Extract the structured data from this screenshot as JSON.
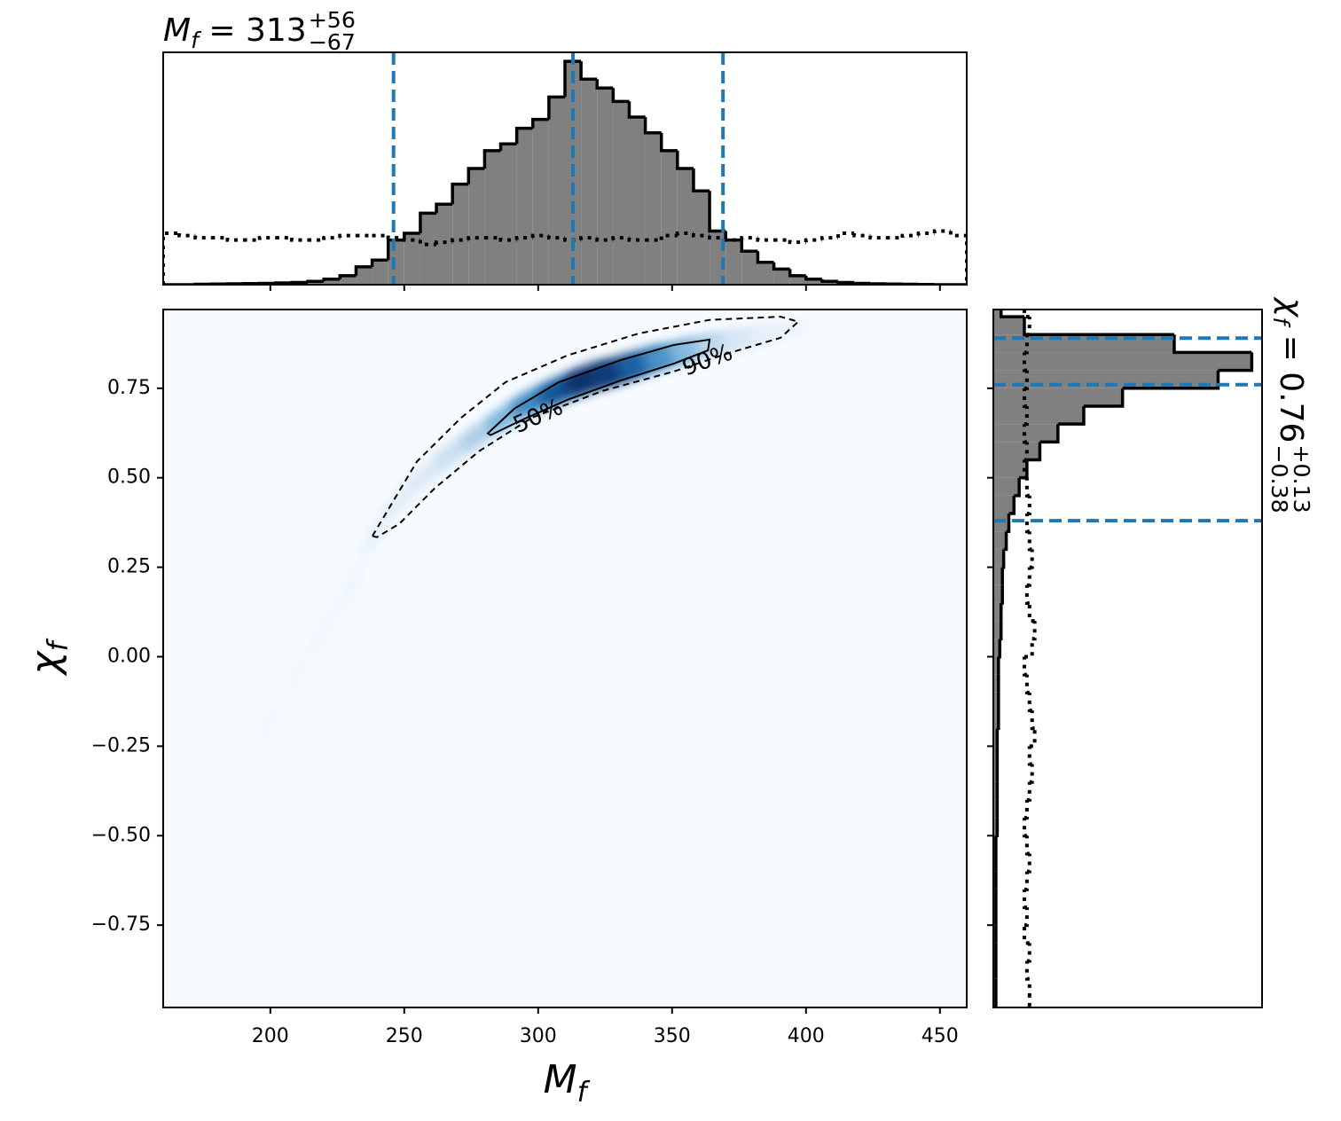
{
  "chart_data": {
    "type": "corner",
    "top_title": {
      "symbol": "M",
      "sub": "f",
      "eq": " = 313",
      "plus": "+56",
      "minus": "−67"
    },
    "right_title": {
      "symbol": "χ",
      "sub": "f",
      "eq": " = 0.76",
      "plus": "+0.13",
      "minus": "−0.38"
    },
    "xlabel": {
      "symbol": "M",
      "sub": "f"
    },
    "ylabel": {
      "symbol": "χ",
      "sub": "f"
    },
    "xlim": [
      160,
      460
    ],
    "ylim": [
      -0.98,
      0.97
    ],
    "xticks": [
      200,
      250,
      300,
      350,
      400,
      450
    ],
    "yticks": [
      {
        "value": -0.75,
        "label": "−0.75"
      },
      {
        "value": -0.5,
        "label": "−0.50"
      },
      {
        "value": -0.25,
        "label": "−0.25"
      },
      {
        "value": 0,
        "label": "0.00"
      },
      0.25,
      {
        "value": 0.5,
        "label": "0.50"
      },
      0.75
    ],
    "colormap": [
      "#f7fbff",
      "#c6dbef",
      "#6baed6",
      "#2171b5",
      "#08306b"
    ],
    "density": {
      "x": [
        200,
        210,
        220,
        230,
        240,
        250,
        260,
        270,
        280,
        290,
        300,
        310,
        320,
        330,
        340,
        350,
        360,
        370,
        380,
        390
      ],
      "y": [
        -0.18,
        -0.05,
        0.08,
        0.2,
        0.35,
        0.45,
        0.52,
        0.58,
        0.63,
        0.68,
        0.72,
        0.75,
        0.78,
        0.8,
        0.825,
        0.845,
        0.865,
        0.88,
        0.895,
        0.91
      ],
      "values": [
        0.02,
        0.025,
        0.03,
        0.04,
        0.07,
        0.1,
        0.15,
        0.22,
        0.32,
        0.45,
        0.65,
        0.85,
        1.0,
        0.95,
        0.8,
        0.6,
        0.4,
        0.25,
        0.14,
        0.07
      ]
    },
    "contours": [
      {
        "label": "50%",
        "style": "solid",
        "x": [
          281.2,
          291.1,
          307.7,
          330.9,
          350.7,
          364.0,
          363.4,
          350.7,
          330.9,
          311.0,
          294.4,
          282.2
        ],
        "y": [
          0.624,
          0.693,
          0.767,
          0.829,
          0.871,
          0.886,
          0.856,
          0.819,
          0.772,
          0.718,
          0.663,
          0.619
        ]
      },
      {
        "label": "90%",
        "style": "dashed",
        "x": [
          238.1,
          244.8,
          254.7,
          271.3,
          287.8,
          311.0,
          337.5,
          364.0,
          390.5,
          397.1,
          390.5,
          370.6,
          350.7,
          324.2,
          297.7,
          277.9,
          261.3,
          248.1,
          239.8
        ],
        "y": [
          0.337,
          0.421,
          0.545,
          0.668,
          0.767,
          0.842,
          0.903,
          0.941,
          0.95,
          0.936,
          0.891,
          0.847,
          0.797,
          0.743,
          0.668,
          0.574,
          0.47,
          0.371,
          0.334
        ]
      }
    ],
    "top_hist": {
      "ylim": [
        0,
        1.04
      ],
      "bins": [
        160,
        166,
        172,
        178,
        184,
        190,
        196,
        202,
        208,
        214,
        220,
        226,
        232,
        238,
        244,
        250,
        256,
        262,
        268,
        274,
        280,
        286,
        292,
        298,
        304,
        310,
        316,
        322,
        328,
        334,
        340,
        346,
        352,
        358,
        364,
        370,
        376,
        382,
        388,
        394,
        400,
        406,
        412,
        418,
        424,
        430,
        436,
        442,
        448,
        454,
        460
      ],
      "values": [
        0,
        0,
        0.002,
        0.003,
        0.004,
        0.005,
        0.006,
        0.008,
        0.01,
        0.015,
        0.025,
        0.04,
        0.08,
        0.11,
        0.2,
        0.23,
        0.32,
        0.36,
        0.45,
        0.52,
        0.6,
        0.63,
        0.7,
        0.74,
        0.84,
        1.0,
        0.92,
        0.88,
        0.82,
        0.75,
        0.68,
        0.6,
        0.52,
        0.42,
        0.24,
        0.2,
        0.15,
        0.1,
        0.07,
        0.04,
        0.025,
        0.015,
        0.01,
        0.006,
        0.004,
        0.003,
        0.002,
        0.001,
        0,
        0
      ],
      "prior": [
        0.23,
        0.22,
        0.21,
        0.21,
        0.2,
        0.2,
        0.21,
        0.21,
        0.2,
        0.2,
        0.21,
        0.22,
        0.22,
        0.22,
        0.21,
        0.2,
        0.18,
        0.19,
        0.2,
        0.21,
        0.21,
        0.2,
        0.21,
        0.22,
        0.21,
        0.2,
        0.21,
        0.2,
        0.21,
        0.2,
        0.2,
        0.22,
        0.23,
        0.22,
        0.21,
        0.2,
        0.21,
        0.2,
        0.2,
        0.19,
        0.2,
        0.21,
        0.23,
        0.22,
        0.21,
        0.21,
        0.22,
        0.23,
        0.24,
        0.22
      ],
      "quantiles": [
        246,
        313,
        369
      ],
      "color": "#808080"
    },
    "right_hist": {
      "xlim": [
        0,
        1.04
      ],
      "bins": [
        -1.0,
        -0.95,
        -0.9,
        -0.85,
        -0.8,
        -0.75,
        -0.7,
        -0.65,
        -0.6,
        -0.55,
        -0.5,
        -0.45,
        -0.4,
        -0.35,
        -0.3,
        -0.25,
        -0.2,
        -0.15,
        -0.1,
        -0.05,
        0.0,
        0.05,
        0.1,
        0.15,
        0.2,
        0.25,
        0.3,
        0.35,
        0.4,
        0.45,
        0.5,
        0.55,
        0.6,
        0.65,
        0.7,
        0.75,
        0.8,
        0.85,
        0.9,
        0.95,
        1.0
      ],
      "values": [
        0.01,
        0.01,
        0.01,
        0.01,
        0.01,
        0.01,
        0.01,
        0.01,
        0.01,
        0.01,
        0.015,
        0.015,
        0.015,
        0.015,
        0.015,
        0.015,
        0.02,
        0.02,
        0.02,
        0.02,
        0.025,
        0.03,
        0.03,
        0.035,
        0.035,
        0.04,
        0.05,
        0.06,
        0.08,
        0.1,
        0.13,
        0.18,
        0.25,
        0.35,
        0.5,
        0.87,
        1.0,
        0.7,
        0.12,
        0.03
      ],
      "prior": [
        0.14,
        0.14,
        0.13,
        0.14,
        0.12,
        0.13,
        0.12,
        0.13,
        0.14,
        0.13,
        0.12,
        0.13,
        0.14,
        0.15,
        0.14,
        0.16,
        0.15,
        0.14,
        0.13,
        0.12,
        0.15,
        0.16,
        0.14,
        0.13,
        0.14,
        0.15,
        0.14,
        0.13,
        0.14,
        0.13,
        0.12,
        0.13,
        0.12,
        0.13,
        0.12,
        0.13,
        0.12,
        0.13,
        0.14,
        0.12
      ],
      "quantiles": [
        0.38,
        0.76,
        0.89
      ],
      "color": "#808080"
    },
    "quantile_color": "#1f77b4"
  }
}
